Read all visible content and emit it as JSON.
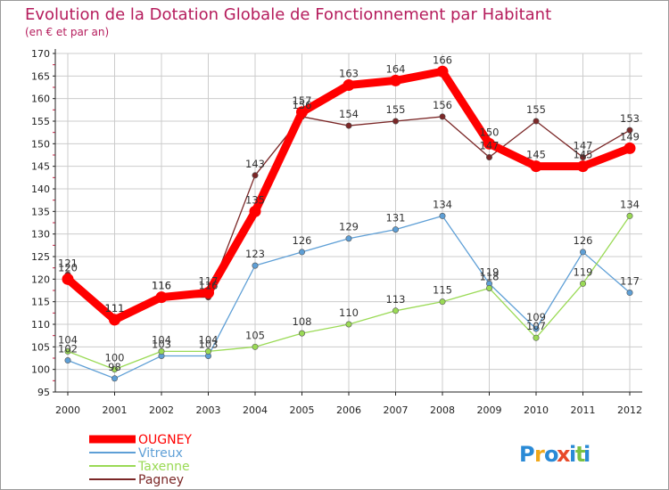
{
  "chart_data": {
    "type": "line",
    "title": "Evolution de la Dotation Globale de Fonctionnement par Habitant",
    "subtitle": "(en € et par an)",
    "categories": [
      "2000",
      "2001",
      "2002",
      "2003",
      "2004",
      "2005",
      "2006",
      "2007",
      "2008",
      "2009",
      "2010",
      "2011",
      "2012"
    ],
    "ylim": [
      95,
      170
    ],
    "yticks": [
      95,
      100,
      105,
      110,
      115,
      120,
      125,
      130,
      135,
      140,
      145,
      150,
      155,
      160,
      165,
      170
    ],
    "series": [
      {
        "name": "OUGNEY",
        "color": "#ff0000",
        "values": [
          120,
          111,
          116,
          117,
          135,
          157,
          163,
          164,
          166,
          150,
          145,
          145,
          149
        ]
      },
      {
        "name": "Vitreux",
        "color": "#5e9fd6",
        "values": [
          102,
          98,
          103,
          103,
          123,
          126,
          129,
          131,
          134,
          119,
          109,
          126,
          117
        ]
      },
      {
        "name": "Taxenne",
        "color": "#9ada55",
        "values": [
          104,
          100,
          104,
          104,
          105,
          108,
          110,
          113,
          115,
          118,
          107,
          119,
          134
        ]
      },
      {
        "name": "Pagney",
        "color": "#7b2727",
        "values": [
          121,
          111,
          116,
          116,
          143,
          156,
          154,
          155,
          156,
          147,
          155,
          147,
          153
        ]
      }
    ],
    "legend_position": "bottom-left"
  },
  "brand": {
    "text": "Proxiti",
    "letters": [
      "P",
      "r",
      "o",
      "x",
      "i",
      "t",
      "i"
    ],
    "letter_colors": [
      "#2a8ad6",
      "#f0a81c",
      "#2a8ad6",
      "#e84a2a",
      "#2a8ad6",
      "#7ac143",
      "#2a8ad6"
    ]
  },
  "colors": {
    "title": "#b51c5c",
    "axis": "#222222",
    "grid": "#cccccc",
    "frame": "#9a9a9a",
    "tick_red": "#cc2244"
  }
}
